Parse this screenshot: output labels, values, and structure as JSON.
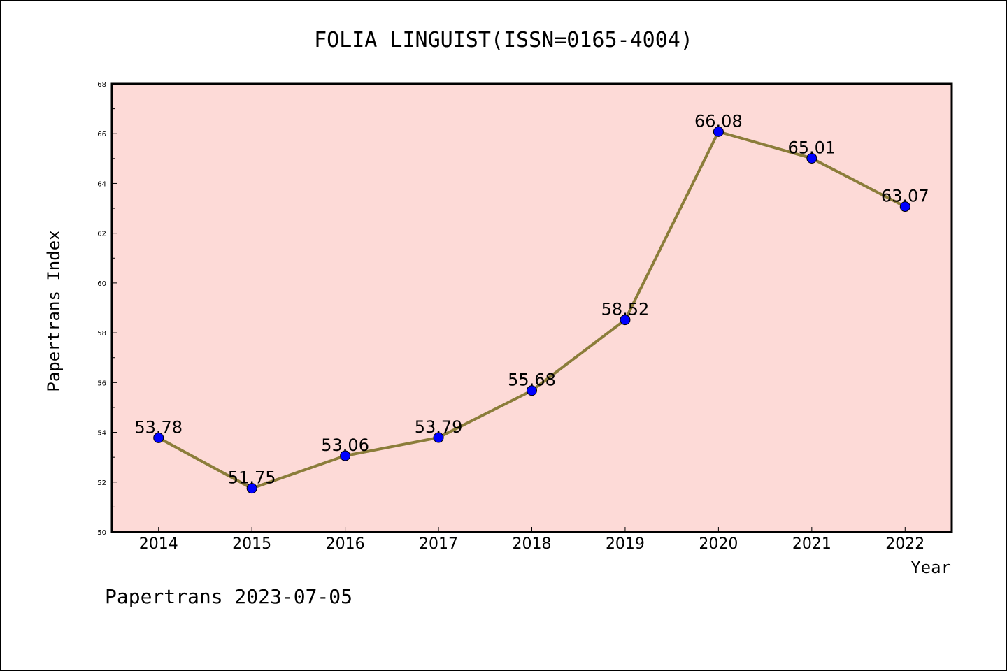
{
  "chart_data": {
    "type": "line",
    "title": "FOLIA LINGUIST(ISSN=0165-4004)",
    "xlabel": "Year",
    "ylabel": "Papertrans Index",
    "categories": [
      "2014",
      "2015",
      "2016",
      "2017",
      "2018",
      "2019",
      "2020",
      "2021",
      "2022"
    ],
    "values": [
      53.78,
      51.75,
      53.06,
      53.79,
      55.68,
      58.52,
      66.08,
      65.01,
      63.07
    ],
    "value_labels": [
      "53.78",
      "51.75",
      "53.06",
      "53.79",
      "55.68",
      "58.52",
      "66.08",
      "65.01",
      "63.07"
    ],
    "ylim": [
      50,
      68
    ],
    "yticks": [
      "50",
      "52",
      "54",
      "56",
      "58",
      "60",
      "62",
      "64",
      "66",
      "68"
    ],
    "grid": false,
    "legend": "none",
    "colors": {
      "plot_background": "#fddad7",
      "line": "#8b7d3a",
      "marker": "#0000ff"
    }
  },
  "footer": "Papertrans 2023-07-05"
}
